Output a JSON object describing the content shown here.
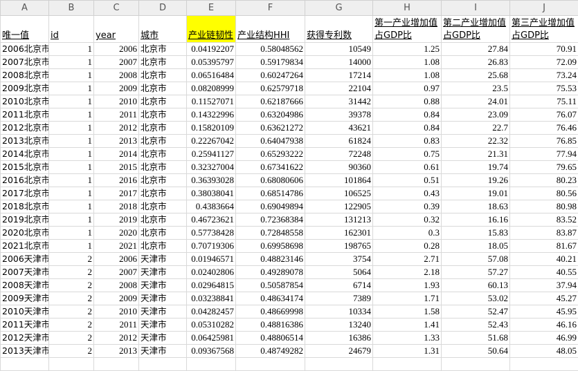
{
  "columns": [
    "A",
    "B",
    "C",
    "D",
    "E",
    "F",
    "G",
    "H",
    "I",
    "J"
  ],
  "headers": [
    "唯一值",
    "id",
    "year",
    "城市",
    "产业链韧性",
    "产业结构HHI",
    "获得专利数",
    "第一产业增加值占GDP比",
    "第二产业增加值占GDP比",
    "第三产业增加值占GDP比"
  ],
  "highlight_color": "#ffff00",
  "rows": [
    [
      "2006北京市",
      "1",
      "2006",
      "北京市",
      "0.04192207",
      "0.58048562",
      "10549",
      "1.25",
      "27.84",
      "70.91"
    ],
    [
      "2007北京市",
      "1",
      "2007",
      "北京市",
      "0.05395797",
      "0.59179834",
      "14000",
      "1.08",
      "26.83",
      "72.09"
    ],
    [
      "2008北京市",
      "1",
      "2008",
      "北京市",
      "0.06516484",
      "0.60247264",
      "17214",
      "1.08",
      "25.68",
      "73.24"
    ],
    [
      "2009北京市",
      "1",
      "2009",
      "北京市",
      "0.08208999",
      "0.62579718",
      "22104",
      "0.97",
      "23.5",
      "75.53"
    ],
    [
      "2010北京市",
      "1",
      "2010",
      "北京市",
      "0.11527071",
      "0.62187666",
      "31442",
      "0.88",
      "24.01",
      "75.11"
    ],
    [
      "2011北京市",
      "1",
      "2011",
      "北京市",
      "0.14322996",
      "0.63204986",
      "39378",
      "0.84",
      "23.09",
      "76.07"
    ],
    [
      "2012北京市",
      "1",
      "2012",
      "北京市",
      "0.15820109",
      "0.63621272",
      "43621",
      "0.84",
      "22.7",
      "76.46"
    ],
    [
      "2013北京市",
      "1",
      "2013",
      "北京市",
      "0.22267042",
      "0.64047938",
      "61824",
      "0.83",
      "22.32",
      "76.85"
    ],
    [
      "2014北京市",
      "1",
      "2014",
      "北京市",
      "0.25941127",
      "0.65293222",
      "72248",
      "0.75",
      "21.31",
      "77.94"
    ],
    [
      "2015北京市",
      "1",
      "2015",
      "北京市",
      "0.32327004",
      "0.67341622",
      "90360",
      "0.61",
      "19.74",
      "79.65"
    ],
    [
      "2016北京市",
      "1",
      "2016",
      "北京市",
      "0.36393028",
      "0.68080606",
      "101864",
      "0.51",
      "19.26",
      "80.23"
    ],
    [
      "2017北京市",
      "1",
      "2017",
      "北京市",
      "0.38038041",
      "0.68514786",
      "106525",
      "0.43",
      "19.01",
      "80.56"
    ],
    [
      "2018北京市",
      "1",
      "2018",
      "北京市",
      "0.4383664",
      "0.69049894",
      "122905",
      "0.39",
      "18.63",
      "80.98"
    ],
    [
      "2019北京市",
      "1",
      "2019",
      "北京市",
      "0.46723621",
      "0.72368384",
      "131213",
      "0.32",
      "16.16",
      "83.52"
    ],
    [
      "2020北京市",
      "1",
      "2020",
      "北京市",
      "0.57738428",
      "0.72848558",
      "162301",
      "0.3",
      "15.83",
      "83.87"
    ],
    [
      "2021北京市",
      "1",
      "2021",
      "北京市",
      "0.70719306",
      "0.69958698",
      "198765",
      "0.28",
      "18.05",
      "81.67"
    ],
    [
      "2006天津市",
      "2",
      "2006",
      "天津市",
      "0.01946571",
      "0.48823146",
      "3754",
      "2.71",
      "57.08",
      "40.21"
    ],
    [
      "2007天津市",
      "2",
      "2007",
      "天津市",
      "0.02402806",
      "0.49289078",
      "5064",
      "2.18",
      "57.27",
      "40.55"
    ],
    [
      "2008天津市",
      "2",
      "2008",
      "天津市",
      "0.02964815",
      "0.50587854",
      "6714",
      "1.93",
      "60.13",
      "37.94"
    ],
    [
      "2009天津市",
      "2",
      "2009",
      "天津市",
      "0.03238841",
      "0.48634174",
      "7389",
      "1.71",
      "53.02",
      "45.27"
    ],
    [
      "2010天津市",
      "2",
      "2010",
      "天津市",
      "0.04282457",
      "0.48669998",
      "10334",
      "1.58",
      "52.47",
      "45.95"
    ],
    [
      "2011天津市",
      "2",
      "2011",
      "天津市",
      "0.05310282",
      "0.48816386",
      "13240",
      "1.41",
      "52.43",
      "46.16"
    ],
    [
      "2012天津市",
      "2",
      "2012",
      "天津市",
      "0.06425981",
      "0.48806514",
      "16386",
      "1.33",
      "51.68",
      "46.99"
    ],
    [
      "2013天津市",
      "2",
      "2013",
      "天津市",
      "0.09367568",
      "0.48749282",
      "24679",
      "1.31",
      "50.64",
      "48.05"
    ]
  ]
}
